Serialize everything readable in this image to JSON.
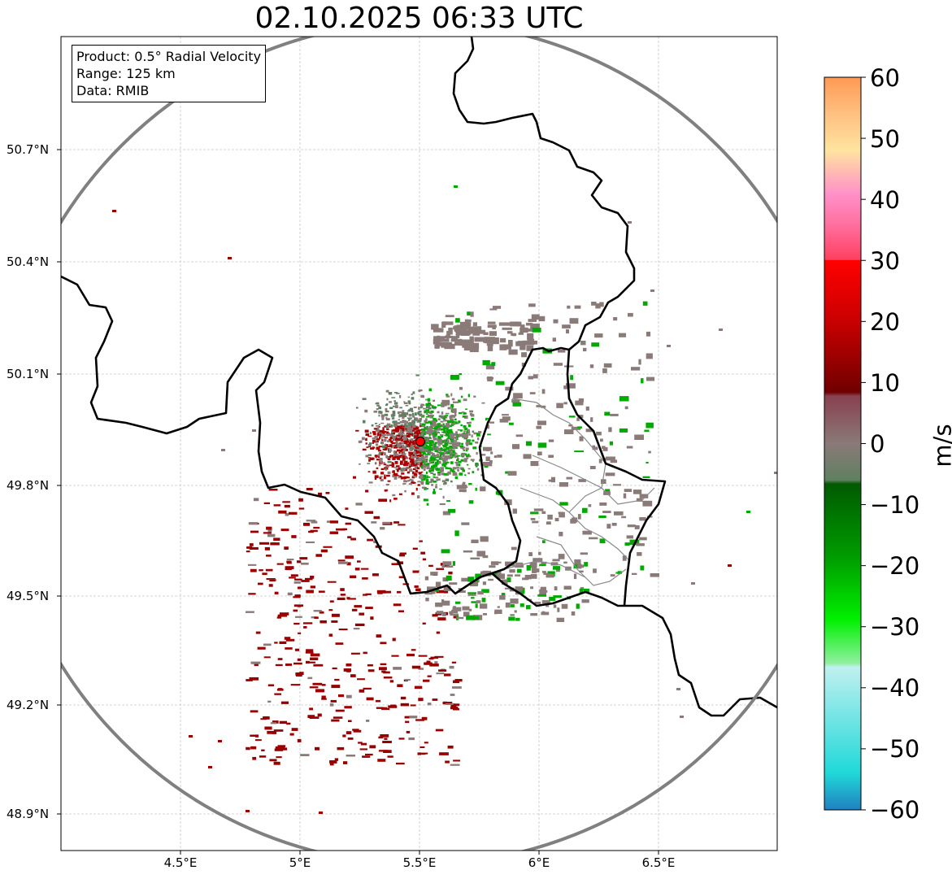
{
  "title": "02.10.2025 06:33 UTC",
  "info": {
    "product": "Product: 0.5° Radial Velocity",
    "range": "Range: 125 km",
    "data": "Data: RMIB"
  },
  "axes": {
    "lat_labels": [
      "50.7°N",
      "50.4°N",
      "50.1°N",
      "49.8°N",
      "49.5°N",
      "49.2°N",
      "48.9°N"
    ],
    "lon_labels": [
      "4.5°E",
      "5°E",
      "5.5°E",
      "6°E",
      "6.5°E"
    ]
  },
  "colorbar": {
    "unit": "m/s",
    "tick_labels": [
      "60",
      "50",
      "40",
      "30",
      "20",
      "10",
      "0",
      "−10",
      "−20",
      "−30",
      "−40",
      "−50",
      "−60"
    ],
    "min": -60,
    "max": 60
  },
  "chart_data": {
    "type": "map",
    "lon_range": [
      4.0,
      7.0
    ],
    "lat_range": [
      48.8,
      51.0
    ],
    "radar_site": {
      "lon": 5.51,
      "lat": 49.91
    },
    "range_km": 125,
    "colors": {
      "stationary": "#8a7a78",
      "inbound": "#00aa00",
      "outbound": "#aa0000",
      "range_ring": "#808080",
      "site_marker": "#ff0000"
    }
  }
}
